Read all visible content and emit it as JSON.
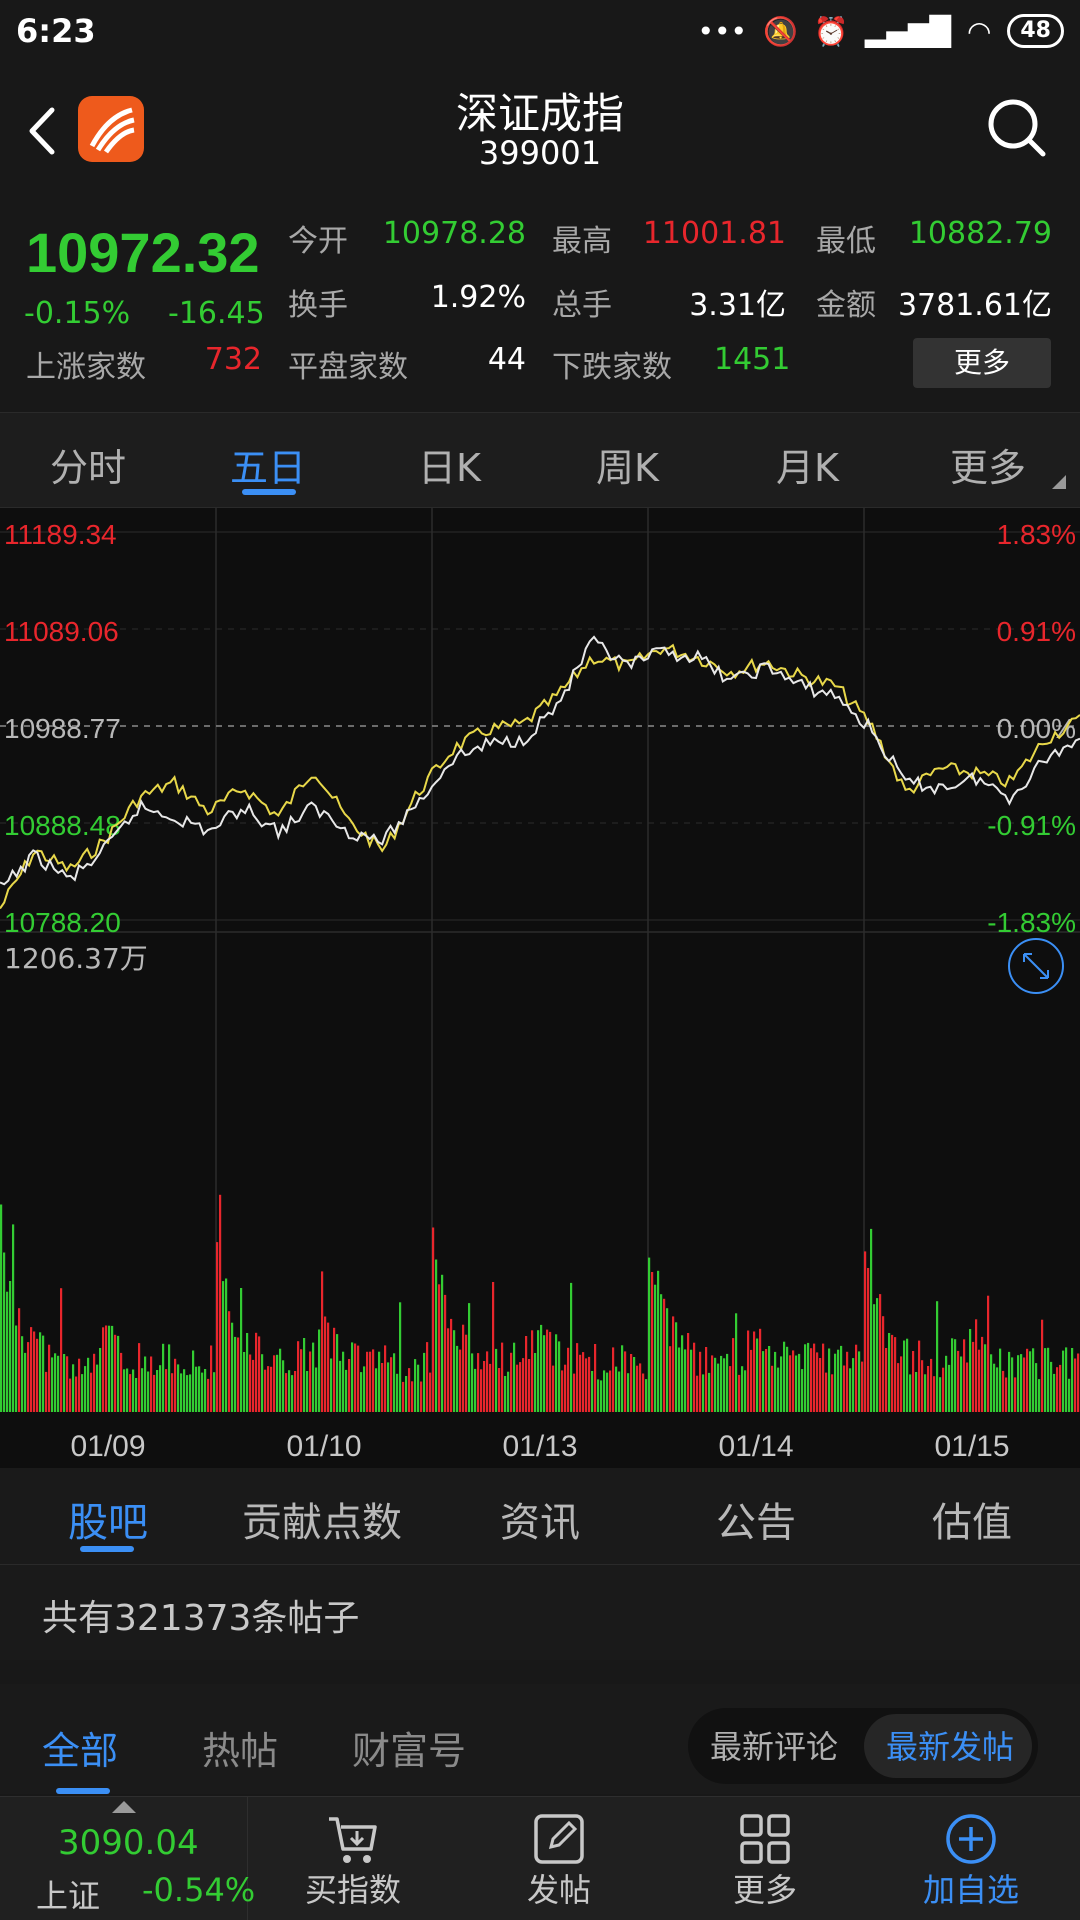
{
  "status": {
    "time": "6:23",
    "battery": "48"
  },
  "header": {
    "title": "深证成指",
    "code": "399001"
  },
  "quote": {
    "price": "10972.32",
    "change_pct": "-0.15%",
    "change_abs": "-16.45",
    "open_label": "今开",
    "open": "10978.28",
    "high_label": "最高",
    "high": "11001.81",
    "low_label": "最低",
    "low": "10882.79",
    "turnover_label": "换手",
    "turnover": "1.92%",
    "volume_label": "总手",
    "volume": "3.31亿",
    "amount_label": "金额",
    "amount": "3781.61亿",
    "up_label": "上涨家数",
    "up_count": "732",
    "flat_label": "平盘家数",
    "flat_count": "44",
    "down_label": "下跌家数",
    "down_count": "1451",
    "more": "更多"
  },
  "chart_tabs": [
    "分时",
    "五日",
    "日K",
    "周K",
    "月K",
    "更多"
  ],
  "chart_data": {
    "type": "line",
    "title": "",
    "y_labels_left": [
      "11189.34",
      "11089.06",
      "10988.77",
      "10888.48",
      "10788.20"
    ],
    "y_labels_right": [
      "1.83%",
      "0.91%",
      "0.00%",
      "-0.91%",
      "-1.83%"
    ],
    "ylim": [
      10788.2,
      11189.34
    ],
    "prev_close": 10988.77,
    "x_labels": [
      "01/09",
      "01/10",
      "01/13",
      "01/14",
      "01/15"
    ],
    "volume_max_label": "1206.37万",
    "series": [
      {
        "color": "#e8d84a",
        "values": [
          10800,
          10860,
          10840,
          10870,
          10915,
          10930,
          10900,
          10925,
          10895,
          10945,
          10890,
          10860,
          10920,
          10965,
          10985,
          10990,
          11020,
          11060,
          11050,
          11070,
          11060,
          11045,
          11055,
          11040,
          11030,
          10990,
          10920,
          10945,
          10940,
          10930,
          10975,
          10995
        ]
      },
      {
        "color": "#e8e8e8",
        "values": [
          10820,
          10855,
          10830,
          10860,
          10905,
          10895,
          10880,
          10905,
          10880,
          10905,
          10880,
          10870,
          10910,
          10955,
          10970,
          10975,
          11010,
          11075,
          11050,
          11065,
          11060,
          11035,
          11050,
          11030,
          11020,
          10985,
          10930,
          10925,
          10935,
          10915,
          10955,
          10975
        ]
      }
    ]
  },
  "info_tabs": [
    "股吧",
    "贡献点数",
    "资讯",
    "公告",
    "估值"
  ],
  "post_count": "共有321373条帖子",
  "filter_tabs": [
    "全部",
    "热帖",
    "财富号"
  ],
  "sort_options": [
    "最新评论",
    "最新发帖"
  ],
  "bottom_nav": {
    "index_value": "3090.04",
    "index_name": "上证",
    "index_change": "-0.54%",
    "items": [
      "买指数",
      "发帖",
      "更多",
      "加自选"
    ]
  }
}
